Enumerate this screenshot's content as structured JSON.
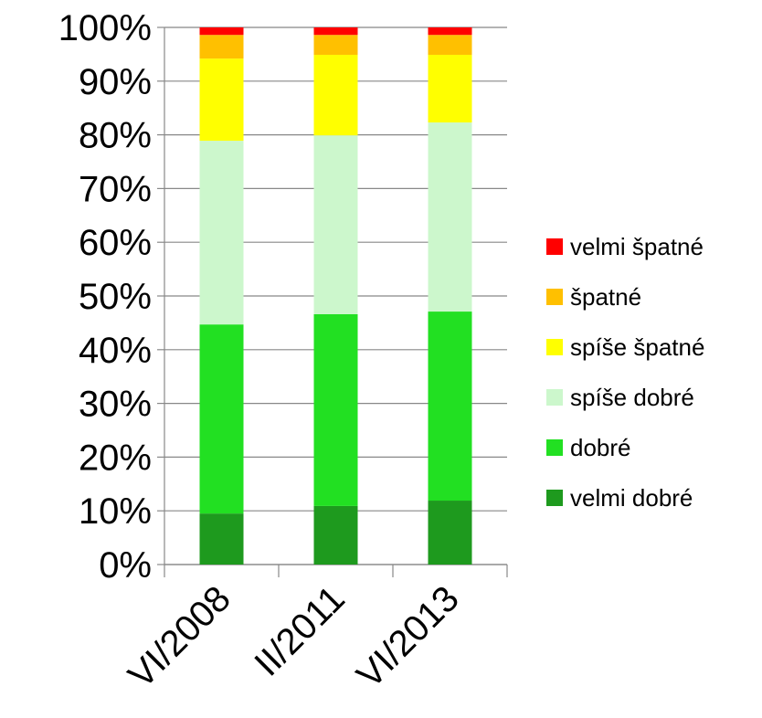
{
  "chart_data": {
    "type": "stacked_bar",
    "categories": [
      "VI/2008",
      "II/2011",
      "VI/2013"
    ],
    "series": [
      {
        "name": "velmi dobré",
        "color": "#1e9a1e",
        "values": [
          9.5,
          10.9,
          11.9
        ]
      },
      {
        "name": "dobré",
        "color": "#22e022",
        "values": [
          35.2,
          35.7,
          35.2
        ]
      },
      {
        "name": "spíše dobré",
        "color": "#ccf7cc",
        "values": [
          34.2,
          33.3,
          35.2
        ]
      },
      {
        "name": "spíše špatné",
        "color": "#ffff00",
        "values": [
          15.3,
          15.0,
          12.6
        ]
      },
      {
        "name": "špatné",
        "color": "#ffc000",
        "values": [
          4.4,
          3.7,
          3.7
        ]
      },
      {
        "name": "velmi špatné",
        "color": "#ff0000",
        "values": [
          1.4,
          1.4,
          1.4
        ]
      }
    ],
    "ylim": [
      0,
      100
    ],
    "yticks": [
      {
        "value": 0,
        "label": "0%"
      },
      {
        "value": 10,
        "label": "10%"
      },
      {
        "value": 20,
        "label": "20%"
      },
      {
        "value": 30,
        "label": "30%"
      },
      {
        "value": 40,
        "label": "40%"
      },
      {
        "value": 50,
        "label": "50%"
      },
      {
        "value": 60,
        "label": "60%"
      },
      {
        "value": 70,
        "label": "70%"
      },
      {
        "value": 80,
        "label": "80%"
      },
      {
        "value": 90,
        "label": "90%"
      },
      {
        "value": 100,
        "label": "100%"
      }
    ],
    "grid": true,
    "legend": "right"
  }
}
